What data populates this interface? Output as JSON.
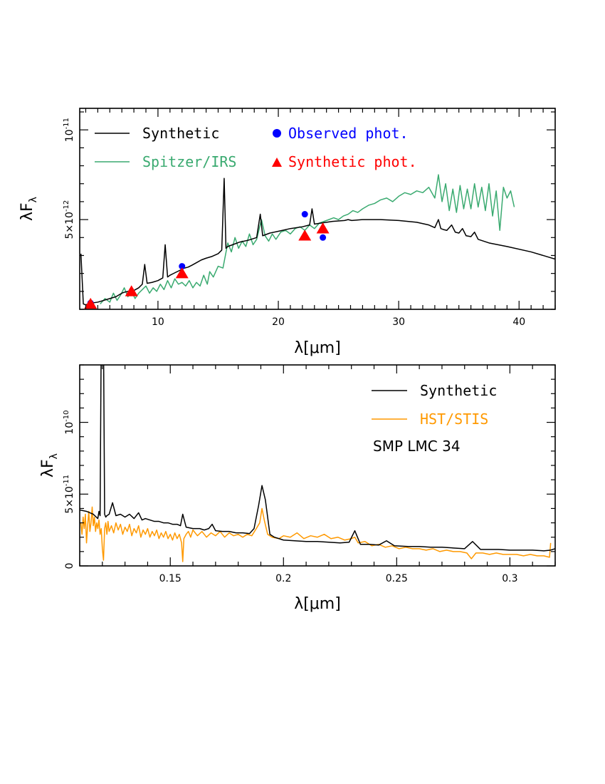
{
  "chart_data": [
    {
      "type": "line",
      "xlabel": "λ[μm]",
      "ylabel": "λF",
      "ylabel_sub": "λ",
      "xlim": [
        3.5,
        43
      ],
      "ylim": [
        0,
        11.2
      ],
      "y_unit_scale": "1e-12",
      "x_ticks": [
        10,
        20,
        30,
        40
      ],
      "x_minor_step": 1,
      "y_ticks": [
        {
          "value": 5,
          "label": "5×10",
          "exp": "-12"
        },
        {
          "value": 10,
          "label": "10",
          "exp": "-11"
        }
      ],
      "y_minor_step": 1,
      "legend_position": "top",
      "series": [
        {
          "name": "Synthetic",
          "color": "#000000",
          "x": [
            3.6,
            3.8,
            4.0,
            4.2,
            4.5,
            5.0,
            5.5,
            6.0,
            6.5,
            7.0,
            7.2,
            7.5,
            8.0,
            8.4,
            8.7,
            8.9,
            9.1,
            9.5,
            10.0,
            10.4,
            10.6,
            10.8,
            11.0,
            11.3,
            11.6,
            11.9,
            12.2,
            12.5,
            12.8,
            13.2,
            13.6,
            14.0,
            14.5,
            15.0,
            15.3,
            15.5,
            15.65,
            15.8,
            16.2,
            16.8,
            17.5,
            18.2,
            18.5,
            18.7,
            18.9,
            19.3,
            20.0,
            21.0,
            22.0,
            22.6,
            22.8,
            23.0,
            23.5,
            24.5,
            25.5,
            25.8,
            26.1,
            27.0,
            28.5,
            30.0,
            31.5,
            32.5,
            33.0,
            33.3,
            33.5,
            33.7,
            34.0,
            34.4,
            34.7,
            35.0,
            35.3,
            35.6,
            36.0,
            36.3,
            36.6,
            37.5,
            39.0,
            41.0,
            43.0
          ],
          "y": [
            3.1,
            0.3,
            0.25,
            0.3,
            0.35,
            0.4,
            0.5,
            0.6,
            0.7,
            0.9,
            0.95,
            1.0,
            1.05,
            1.2,
            1.4,
            2.5,
            1.45,
            1.5,
            1.6,
            1.75,
            3.6,
            1.8,
            1.9,
            2.0,
            2.1,
            2.2,
            2.3,
            2.35,
            2.45,
            2.6,
            2.75,
            2.85,
            2.95,
            3.1,
            3.3,
            7.3,
            3.4,
            3.5,
            3.6,
            3.75,
            3.85,
            4.0,
            5.3,
            4.1,
            4.15,
            4.25,
            4.35,
            4.5,
            4.6,
            4.7,
            5.6,
            4.75,
            4.8,
            4.9,
            4.95,
            5.0,
            4.95,
            5.0,
            5.0,
            4.95,
            4.85,
            4.7,
            4.55,
            5.0,
            4.5,
            4.45,
            4.4,
            4.7,
            4.3,
            4.25,
            4.5,
            4.1,
            4.05,
            4.3,
            3.9,
            3.7,
            3.5,
            3.2,
            2.8
          ]
        },
        {
          "name": "Spitzer/IRS",
          "color": "#3aaa70",
          "x": [
            5.2,
            5.6,
            6.0,
            6.3,
            6.6,
            6.9,
            7.2,
            7.5,
            7.8,
            8.1,
            8.4,
            8.7,
            9.0,
            9.3,
            9.6,
            9.9,
            10.2,
            10.5,
            10.8,
            11.1,
            11.4,
            11.7,
            12.0,
            12.3,
            12.6,
            12.9,
            13.2,
            13.5,
            13.8,
            14.1,
            14.3,
            14.6,
            15.0,
            15.4,
            15.8,
            16.1,
            16.4,
            16.7,
            17.0,
            17.3,
            17.6,
            17.9,
            18.2,
            18.6,
            18.9,
            19.2,
            19.5,
            19.8,
            20.2,
            20.6,
            21.0,
            21.4,
            21.8,
            22.2,
            22.6,
            23.0,
            23.4,
            23.8,
            24.2,
            24.6,
            25.0,
            25.4,
            25.8,
            26.2,
            26.6,
            27.0,
            27.5,
            28.0,
            28.5,
            29.0,
            29.5,
            30.0,
            30.5,
            31.0,
            31.5,
            32.0,
            32.5,
            33.0,
            33.3,
            33.6,
            33.9,
            34.2,
            34.5,
            34.8,
            35.1,
            35.4,
            35.7,
            36.0,
            36.3,
            36.6,
            36.9,
            37.2,
            37.5,
            37.8,
            38.1,
            38.4,
            38.7,
            39.0,
            39.3,
            39.6
          ],
          "y": [
            0.3,
            0.6,
            0.4,
            0.9,
            0.5,
            0.8,
            1.2,
            0.7,
            1.0,
            0.6,
            0.9,
            1.1,
            1.3,
            0.9,
            1.2,
            1.0,
            1.4,
            1.1,
            1.6,
            1.2,
            1.7,
            1.4,
            1.5,
            1.3,
            1.6,
            1.2,
            1.5,
            1.3,
            1.9,
            1.4,
            2.1,
            1.8,
            2.4,
            2.3,
            3.7,
            3.2,
            4.0,
            3.4,
            3.8,
            3.5,
            4.2,
            3.6,
            3.9,
            5.0,
            4.1,
            3.8,
            4.2,
            3.9,
            4.3,
            4.4,
            4.2,
            4.5,
            4.6,
            4.4,
            4.7,
            4.5,
            4.8,
            4.9,
            5.0,
            5.1,
            5.0,
            5.2,
            5.3,
            5.5,
            5.4,
            5.6,
            5.8,
            5.9,
            6.1,
            6.2,
            6.0,
            6.3,
            6.5,
            6.4,
            6.6,
            6.5,
            6.8,
            6.2,
            7.5,
            6.0,
            7.0,
            5.5,
            6.7,
            5.4,
            6.9,
            5.6,
            6.7,
            5.6,
            7.0,
            5.7,
            6.8,
            5.5,
            7.0,
            5.2,
            6.6,
            4.4,
            6.8,
            6.2,
            6.6,
            5.7
          ]
        }
      ],
      "points": [
        {
          "name": "Observed phot.",
          "color": "#0000ff",
          "marker": "circle",
          "x": [
            4.4,
            7.8,
            12.0,
            22.2,
            23.7
          ],
          "y": [
            0.35,
            0.95,
            2.4,
            5.3,
            4.0
          ]
        },
        {
          "name": "Synthetic phot.",
          "color": "#ff0000",
          "marker": "triangle",
          "x": [
            4.4,
            7.8,
            12.0,
            22.2,
            23.7
          ],
          "y": [
            0.3,
            1.0,
            2.0,
            4.1,
            4.5
          ]
        }
      ]
    },
    {
      "type": "line",
      "xlabel": "λ[μm]",
      "ylabel": "λF",
      "ylabel_sub": "λ",
      "xlim": [
        0.11,
        0.32
      ],
      "ylim": [
        0,
        14
      ],
      "y_unit_scale": "1e-11",
      "x_ticks": [
        0.15,
        0.2,
        0.25,
        0.3
      ],
      "x_minor_step": 0.01,
      "y_ticks": [
        {
          "value": 0,
          "label": "0",
          "exp": ""
        },
        {
          "value": 5,
          "label": "5×10",
          "exp": "-11"
        },
        {
          "value": 10,
          "label": "10",
          "exp": "-10"
        }
      ],
      "y_minor_step": 1,
      "legend_position": "top-right",
      "annotation": "SMP LMC 34",
      "series": [
        {
          "name": "Synthetic",
          "color": "#000000",
          "x": [
            0.11,
            0.113,
            0.116,
            0.118,
            0.1185,
            0.119,
            0.1195,
            0.1205,
            0.121,
            0.1215,
            0.122,
            0.123,
            0.1245,
            0.126,
            0.128,
            0.13,
            0.132,
            0.134,
            0.136,
            0.1375,
            0.139,
            0.141,
            0.143,
            0.145,
            0.147,
            0.149,
            0.151,
            0.153,
            0.1545,
            0.1555,
            0.157,
            0.16,
            0.163,
            0.165,
            0.167,
            0.1685,
            0.17,
            0.173,
            0.176,
            0.179,
            0.182,
            0.185,
            0.187,
            0.189,
            0.1905,
            0.192,
            0.194,
            0.196,
            0.2,
            0.205,
            0.21,
            0.215,
            0.22,
            0.225,
            0.229,
            0.2315,
            0.234,
            0.238,
            0.242,
            0.2455,
            0.249,
            0.255,
            0.26,
            0.265,
            0.27,
            0.275,
            0.28,
            0.2835,
            0.287,
            0.29,
            0.295,
            0.3,
            0.305,
            0.31,
            0.315,
            0.318,
            0.32
          ],
          "y": [
            3.9,
            3.8,
            3.6,
            3.3,
            3.8,
            3.5,
            16.0,
            16.0,
            3.6,
            3.4,
            3.5,
            3.6,
            4.4,
            3.5,
            3.6,
            3.4,
            3.6,
            3.3,
            3.7,
            3.2,
            3.3,
            3.2,
            3.1,
            3.1,
            3.0,
            3.0,
            2.9,
            2.9,
            2.8,
            3.6,
            2.7,
            2.6,
            2.6,
            2.5,
            2.6,
            2.9,
            2.45,
            2.4,
            2.4,
            2.3,
            2.3,
            2.25,
            2.6,
            4.2,
            5.6,
            4.6,
            2.2,
            2.0,
            1.8,
            1.75,
            1.7,
            1.7,
            1.65,
            1.6,
            1.65,
            2.45,
            1.5,
            1.5,
            1.45,
            1.75,
            1.4,
            1.35,
            1.35,
            1.3,
            1.3,
            1.25,
            1.2,
            1.7,
            1.15,
            1.15,
            1.15,
            1.1,
            1.1,
            1.1,
            1.05,
            1.1,
            1.2
          ]
        },
        {
          "name": "HST/STIS",
          "color": "#ff9900",
          "x": [
            0.1105,
            0.111,
            0.1115,
            0.112,
            0.1125,
            0.113,
            0.1135,
            0.114,
            0.1145,
            0.115,
            0.1155,
            0.116,
            0.1165,
            0.117,
            0.1175,
            0.118,
            0.1185,
            0.119,
            0.1195,
            0.12,
            0.1205,
            0.121,
            0.1215,
            0.122,
            0.1225,
            0.123,
            0.124,
            0.125,
            0.126,
            0.127,
            0.128,
            0.129,
            0.13,
            0.131,
            0.132,
            0.133,
            0.134,
            0.135,
            0.136,
            0.137,
            0.138,
            0.139,
            0.14,
            0.141,
            0.142,
            0.143,
            0.144,
            0.145,
            0.146,
            0.147,
            0.148,
            0.149,
            0.15,
            0.151,
            0.152,
            0.153,
            0.154,
            0.155,
            0.1555,
            0.156,
            0.157,
            0.158,
            0.159,
            0.16,
            0.162,
            0.164,
            0.166,
            0.168,
            0.17,
            0.172,
            0.174,
            0.176,
            0.178,
            0.18,
            0.182,
            0.184,
            0.186,
            0.188,
            0.1895,
            0.1905,
            0.1915,
            0.193,
            0.195,
            0.198,
            0.2,
            0.203,
            0.206,
            0.209,
            0.212,
            0.215,
            0.218,
            0.221,
            0.224,
            0.227,
            0.23,
            0.2315,
            0.233,
            0.236,
            0.239,
            0.242,
            0.245,
            0.248,
            0.251,
            0.254,
            0.257,
            0.26,
            0.263,
            0.266,
            0.269,
            0.272,
            0.275,
            0.278,
            0.281,
            0.283,
            0.285,
            0.288,
            0.291,
            0.294,
            0.297,
            0.3,
            0.303,
            0.306,
            0.309,
            0.312,
            0.315,
            0.3175,
            0.318
          ],
          "y": [
            3.0,
            2.2,
            3.4,
            2.6,
            3.6,
            1.6,
            2.8,
            3.8,
            2.4,
            3.0,
            4.1,
            2.8,
            3.4,
            2.4,
            3.0,
            2.6,
            3.2,
            2.2,
            2.6,
            1.2,
            0.4,
            2.6,
            3.0,
            2.2,
            3.1,
            2.4,
            2.8,
            2.3,
            3.0,
            2.5,
            2.9,
            2.2,
            2.7,
            2.4,
            2.9,
            2.1,
            2.6,
            2.3,
            2.8,
            2.0,
            2.5,
            2.2,
            2.6,
            2.0,
            2.4,
            2.1,
            2.5,
            1.9,
            2.3,
            2.0,
            2.4,
            1.9,
            2.2,
            1.8,
            2.3,
            1.9,
            2.2,
            1.6,
            0.3,
            1.9,
            2.2,
            2.4,
            2.0,
            2.5,
            2.1,
            2.4,
            2.0,
            2.3,
            2.1,
            2.4,
            2.0,
            2.3,
            2.1,
            2.2,
            2.0,
            2.2,
            2.1,
            2.6,
            3.0,
            4.0,
            3.2,
            2.2,
            2.0,
            1.9,
            2.1,
            2.0,
            2.3,
            1.9,
            2.1,
            2.0,
            2.2,
            1.9,
            2.0,
            1.8,
            1.9,
            2.0,
            1.6,
            1.7,
            1.4,
            1.5,
            1.3,
            1.4,
            1.2,
            1.3,
            1.2,
            1.2,
            1.1,
            1.2,
            1.0,
            1.1,
            1.0,
            1.0,
            0.9,
            0.5,
            0.9,
            0.9,
            0.8,
            0.9,
            0.8,
            0.8,
            0.8,
            0.7,
            0.8,
            0.7,
            0.7,
            0.6,
            1.6
          ]
        }
      ]
    }
  ]
}
